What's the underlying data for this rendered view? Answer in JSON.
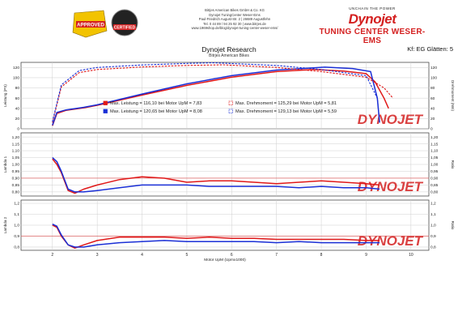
{
  "header": {
    "company_lines": [
      "Bitrjes American Bikes GmbH & Co. KG",
      "Dynojet TuningCenter Weser-Ems",
      "Paul-Friedrich August-Str. 2 | 26689 Augustfehn",
      "Tel. 0 44 89 / 94 25 92 30 | www.bitrjes.de",
      "www.1969shop.de/blog/dynojet-tuning-center-weser-ems/"
    ],
    "dynojet_tagline": "UNCHAIN THE POWER",
    "dynojet_brand": "Dynojet",
    "dynojet_subtitle": "TUNING CENTER WESER-EMS",
    "badge_left": "APPROVED",
    "badge_right": "CERTIFIED"
  },
  "report": {
    "title": "Dynojet Research",
    "subtitle": "Bitrjes American Bikes",
    "smoothing": "Kf: EG Glätten: 5"
  },
  "colors": {
    "run1": "#e01818",
    "run2": "#1a2fd6",
    "limit": "#e05050"
  },
  "watermark": "DYNOJET",
  "chart_data": [
    {
      "type": "line",
      "panel": "power-torque",
      "ylabel_left": "Leistung (PS)",
      "ylabel_right": "Drehmoment (Nm)",
      "ylim": [
        0,
        130
      ],
      "yticks": [
        "0",
        "20",
        "40",
        "60",
        "80",
        "100",
        "120"
      ],
      "xlim": [
        1.3,
        10.4
      ],
      "legend": [
        "Max. Leistung = 116,10 bei Motor UpM = 7,83",
        "Max. Leistung = 120,65 bei Motor UpM = 8,08",
        "Max. Drehmoment = 125,29 bei Motor UpM = 5,81",
        "Max. Drehmoment = 129,13 bei Motor UpM = 5,59"
      ],
      "legend_placement": "bottom-center",
      "series": [
        {
          "kind": "power",
          "run": 1,
          "style": "solid",
          "x": [
            2.0,
            2.1,
            2.3,
            2.7,
            3.0,
            4.0,
            5.0,
            6.0,
            7.0,
            7.83,
            8.5,
            9.0,
            9.2,
            9.4,
            9.5
          ],
          "y": [
            6,
            30,
            36,
            41,
            46,
            66,
            85,
            101,
            112,
            116.1,
            113,
            108,
            92,
            60,
            40
          ]
        },
        {
          "kind": "power",
          "run": 2,
          "style": "solid",
          "x": [
            2.0,
            2.1,
            2.3,
            2.7,
            3.0,
            4.0,
            5.0,
            6.0,
            7.0,
            8.08,
            8.7,
            9.1,
            9.25,
            9.3
          ],
          "y": [
            7,
            32,
            37,
            42,
            47,
            68,
            88,
            104,
            115,
            120.65,
            118,
            112,
            60,
            12
          ]
        },
        {
          "kind": "torque",
          "run": 1,
          "style": "dashed",
          "x": [
            2.0,
            2.2,
            2.6,
            3.0,
            4.0,
            5.0,
            5.81,
            7.0,
            8.0,
            9.0,
            9.4,
            9.6
          ],
          "y": [
            12,
            82,
            110,
            116,
            121,
            124,
            125.29,
            120,
            112,
            101,
            80,
            60
          ]
        },
        {
          "kind": "torque",
          "run": 2,
          "style": "dashed",
          "x": [
            2.0,
            2.2,
            2.6,
            3.0,
            4.0,
            5.0,
            5.59,
            7.0,
            8.0,
            9.0,
            9.25,
            9.3
          ],
          "y": [
            14,
            86,
            114,
            120,
            125,
            128,
            129.13,
            124,
            116,
            104,
            60,
            15
          ]
        }
      ]
    },
    {
      "type": "line",
      "panel": "lambda-1",
      "ylabel_left": "Lambda 1",
      "ylabel_right": "Ratio",
      "ylim": [
        0.77,
        1.23
      ],
      "yticks": [
        "0,80",
        "0,85",
        "0,90",
        "0,95",
        "1,00",
        "1,05",
        "1,10",
        "1,15",
        "1,20"
      ],
      "reference_line": 0.9,
      "xlim": [
        1.3,
        10.4
      ],
      "series": [
        {
          "run": 1,
          "x": [
            2.0,
            2.1,
            2.2,
            2.35,
            2.5,
            2.7,
            3.0,
            3.5,
            4.0,
            4.5,
            5.0,
            5.5,
            6.0,
            6.5,
            7.0,
            7.5,
            8.0,
            8.5,
            9.0,
            9.3
          ],
          "y": [
            1.04,
            1.0,
            0.94,
            0.81,
            0.79,
            0.82,
            0.85,
            0.89,
            0.91,
            0.9,
            0.87,
            0.88,
            0.88,
            0.87,
            0.86,
            0.87,
            0.88,
            0.87,
            0.86,
            0.85
          ]
        },
        {
          "run": 2,
          "x": [
            2.0,
            2.1,
            2.2,
            2.35,
            2.5,
            2.7,
            3.0,
            3.5,
            4.0,
            4.5,
            5.0,
            5.5,
            6.0,
            6.5,
            7.0,
            7.5,
            8.0,
            8.5,
            9.0,
            9.3
          ],
          "y": [
            1.05,
            1.02,
            0.95,
            0.82,
            0.8,
            0.8,
            0.81,
            0.83,
            0.85,
            0.85,
            0.85,
            0.84,
            0.84,
            0.84,
            0.84,
            0.83,
            0.84,
            0.83,
            0.83,
            0.82
          ]
        }
      ]
    },
    {
      "type": "line",
      "panel": "lambda-2",
      "ylabel_left": "Lambda 2",
      "ylabel_right": "Ratio",
      "ylim": [
        0.77,
        1.23
      ],
      "yticks": [
        "0,8",
        "0,9",
        "1,0",
        "1,1",
        "1,2"
      ],
      "reference_line": 0.9,
      "xlim": [
        1.3,
        10.4
      ],
      "xlabel": "Motor UpM (Upmx1000)",
      "xticks": [
        "2",
        "3",
        "4",
        "5",
        "6",
        "7",
        "8",
        "9",
        "10"
      ],
      "series": [
        {
          "run": 1,
          "x": [
            2.0,
            2.1,
            2.2,
            2.35,
            2.5,
            2.7,
            3.0,
            3.5,
            4.0,
            4.5,
            5.0,
            5.5,
            6.0,
            6.5,
            7.0,
            7.5,
            8.0,
            8.5,
            9.0,
            9.3
          ],
          "y": [
            1.0,
            0.98,
            0.9,
            0.82,
            0.79,
            0.82,
            0.86,
            0.89,
            0.89,
            0.89,
            0.88,
            0.89,
            0.88,
            0.88,
            0.87,
            0.87,
            0.87,
            0.87,
            0.86,
            0.86
          ]
        },
        {
          "run": 2,
          "x": [
            2.0,
            2.1,
            2.2,
            2.35,
            2.5,
            2.7,
            3.0,
            3.5,
            4.0,
            4.5,
            5.0,
            5.5,
            6.0,
            6.5,
            7.0,
            7.5,
            8.0,
            8.5,
            9.0,
            9.3
          ],
          "y": [
            1.01,
            0.99,
            0.91,
            0.82,
            0.8,
            0.8,
            0.82,
            0.84,
            0.85,
            0.86,
            0.85,
            0.85,
            0.85,
            0.85,
            0.84,
            0.85,
            0.84,
            0.84,
            0.84,
            0.84
          ]
        }
      ]
    }
  ]
}
